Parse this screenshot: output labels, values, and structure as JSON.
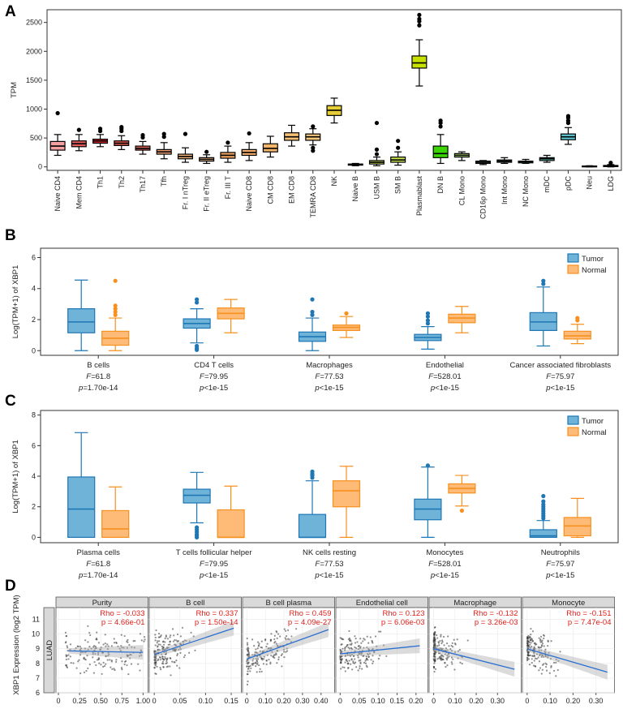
{
  "panels": {
    "A": "A",
    "B": "B",
    "C": "C",
    "D": "D"
  },
  "chart_data": [
    {
      "panel": "A",
      "type": "box",
      "ylabel": "TPM",
      "ylim": [
        -60,
        2720
      ],
      "yticks": [
        0,
        500,
        1000,
        1500,
        2000,
        2500
      ],
      "categories": [
        {
          "name": "Naive CD4",
          "color": "#f4a0a0",
          "q1": 290,
          "med": 360,
          "q3": 440,
          "lo": 200,
          "hi": 560,
          "out": [
            930
          ]
        },
        {
          "name": "Mem CD4",
          "color": "#e75a5a",
          "q1": 350,
          "med": 400,
          "q3": 450,
          "lo": 280,
          "hi": 560,
          "out": [
            640
          ]
        },
        {
          "name": "Th1",
          "color": "#d9262c",
          "q1": 410,
          "med": 450,
          "q3": 480,
          "lo": 350,
          "hi": 560,
          "out": [
            620,
            660
          ]
        },
        {
          "name": "Th2",
          "color": "#e25a50",
          "q1": 370,
          "med": 410,
          "q3": 450,
          "lo": 300,
          "hi": 540,
          "out": [
            620,
            660,
            690
          ]
        },
        {
          "name": "Th17",
          "color": "#e4685c",
          "q1": 290,
          "med": 320,
          "q3": 360,
          "lo": 220,
          "hi": 440,
          "out": [
            510,
            550
          ]
        },
        {
          "name": "Tfh",
          "color": "#f0a070",
          "q1": 220,
          "med": 260,
          "q3": 300,
          "lo": 140,
          "hi": 420,
          "out": [
            520,
            570
          ]
        },
        {
          "name": "Fr. I nTreg",
          "color": "#f6b87e",
          "q1": 140,
          "med": 180,
          "q3": 220,
          "lo": 80,
          "hi": 330,
          "out": [
            570
          ]
        },
        {
          "name": "Fr. II eTreg",
          "color": "#f7c68e",
          "q1": 100,
          "med": 130,
          "q3": 160,
          "lo": 60,
          "hi": 210,
          "out": [
            260
          ]
        },
        {
          "name": "Fr. III T",
          "color": "#f3a561",
          "q1": 150,
          "med": 200,
          "q3": 250,
          "lo": 80,
          "hi": 360,
          "out": [
            420
          ]
        },
        {
          "name": "Naive CD8",
          "color": "#f4b06c",
          "q1": 200,
          "med": 250,
          "q3": 300,
          "lo": 110,
          "hi": 420,
          "out": [
            580
          ]
        },
        {
          "name": "CM CD8",
          "color": "#f5b56b",
          "q1": 260,
          "med": 320,
          "q3": 400,
          "lo": 170,
          "hi": 530,
          "out": []
        },
        {
          "name": "EM CD8",
          "color": "#f8c074",
          "q1": 460,
          "med": 520,
          "q3": 590,
          "lo": 360,
          "hi": 720,
          "out": []
        },
        {
          "name": "TEMRA CD8",
          "color": "#f5c77a",
          "q1": 460,
          "med": 520,
          "q3": 570,
          "lo": 380,
          "hi": 660,
          "out": [
            280,
            330,
            700
          ]
        },
        {
          "name": "NK",
          "color": "#e6cf36",
          "q1": 890,
          "med": 980,
          "q3": 1060,
          "lo": 760,
          "hi": 1190,
          "out": []
        },
        {
          "name": "Naive B",
          "color": "#dde86b",
          "q1": 30,
          "med": 40,
          "q3": 50,
          "lo": 20,
          "hi": 60,
          "out": []
        },
        {
          "name": "USM B",
          "color": "#cfe256",
          "q1": 50,
          "med": 80,
          "q3": 110,
          "lo": 20,
          "hi": 170,
          "out": [
            220,
            300,
            760
          ]
        },
        {
          "name": "SM B",
          "color": "#c4df4c",
          "q1": 80,
          "med": 120,
          "q3": 170,
          "lo": 30,
          "hi": 260,
          "out": [
            330,
            450
          ]
        },
        {
          "name": "Plasmablast",
          "color": "#c8e000",
          "q1": 1710,
          "med": 1800,
          "q3": 1920,
          "lo": 1400,
          "hi": 2200,
          "out": [
            2450,
            2520,
            2560,
            2630
          ]
        },
        {
          "name": "DN B",
          "color": "#3ad400",
          "q1": 160,
          "med": 230,
          "q3": 360,
          "lo": 60,
          "hi": 560,
          "out": [
            700,
            760,
            800
          ]
        },
        {
          "name": "CL Mono",
          "color": "#b8e87e",
          "q1": 170,
          "med": 200,
          "q3": 230,
          "lo": 110,
          "hi": 260,
          "out": []
        },
        {
          "name": "CD16p Mono",
          "color": "#88d0a0",
          "q1": 60,
          "med": 80,
          "q3": 100,
          "lo": 40,
          "hi": 110,
          "out": []
        },
        {
          "name": "Int Mono",
          "color": "#88d0b0",
          "q1": 80,
          "med": 100,
          "q3": 120,
          "lo": 60,
          "hi": 160,
          "out": []
        },
        {
          "name": "NC Mono",
          "color": "#6cc7a8",
          "q1": 70,
          "med": 90,
          "q3": 100,
          "lo": 60,
          "hi": 130,
          "out": []
        },
        {
          "name": "mDC",
          "color": "#5cc4b8",
          "q1": 110,
          "med": 140,
          "q3": 160,
          "lo": 80,
          "hi": 200,
          "out": []
        },
        {
          "name": "pDC",
          "color": "#5fc8d4",
          "q1": 470,
          "med": 520,
          "q3": 570,
          "lo": 390,
          "hi": 680,
          "out": [
            760,
            800,
            850,
            880
          ]
        },
        {
          "name": "Neu",
          "color": "#6c9ed8",
          "q1": 0,
          "med": 10,
          "q3": 15,
          "lo": 0,
          "hi": 20,
          "out": []
        },
        {
          "name": "LDG",
          "color": "#7d8fe0",
          "q1": 5,
          "med": 15,
          "q3": 25,
          "lo": 0,
          "hi": 40,
          "out": [
            70
          ]
        }
      ]
    },
    {
      "panel": "B",
      "type": "grouped-box",
      "ylabel": "Log(TPM+1) of XBP1",
      "ylim": [
        -0.3,
        6.6
      ],
      "yticks": [
        0,
        2,
        4,
        6
      ],
      "legend": [
        {
          "name": "Tumor",
          "fill": "#6fb3d9",
          "stroke": "#1f77b4"
        },
        {
          "name": "Normal",
          "fill": "#fdbb77",
          "stroke": "#f7901e"
        }
      ],
      "groups": [
        {
          "name": "B cells",
          "f": "61.8",
          "p": "=1.70e-14",
          "tumor": {
            "q1": 1.15,
            "med": 1.85,
            "q3": 2.7,
            "lo": 0.0,
            "hi": 4.55,
            "out": []
          },
          "normal": {
            "q1": 0.35,
            "med": 0.8,
            "q3": 1.25,
            "lo": 0.0,
            "hi": 2.1,
            "out": [
              2.3,
              2.5,
              2.7,
              2.9,
              4.5
            ]
          }
        },
        {
          "name": "CD4 T cells",
          "f": "79.95",
          "p": "<1e-15",
          "tumor": {
            "q1": 1.45,
            "med": 1.75,
            "q3": 2.05,
            "lo": 0.5,
            "hi": 2.7,
            "out": [
              0.05,
              0.15,
              0.3,
              3.1,
              3.3
            ]
          },
          "normal": {
            "q1": 2.05,
            "med": 2.4,
            "q3": 2.75,
            "lo": 1.15,
            "hi": 3.3,
            "out": []
          }
        },
        {
          "name": "Macrophages",
          "f": "77.53",
          "p": "<1e-15",
          "tumor": {
            "q1": 0.6,
            "med": 0.9,
            "q3": 1.2,
            "lo": 0.0,
            "hi": 2.1,
            "out": [
              2.3,
              2.5,
              3.3
            ]
          },
          "normal": {
            "q1": 1.3,
            "med": 1.5,
            "q3": 1.65,
            "lo": 0.85,
            "hi": 2.2,
            "out": [
              2.4
            ]
          }
        },
        {
          "name": "Endothelial",
          "f": "528.01",
          "p": "<1e-15",
          "tumor": {
            "q1": 0.65,
            "med": 0.85,
            "q3": 1.05,
            "lo": 0.1,
            "hi": 1.55,
            "out": [
              1.75,
              1.95,
              2.2,
              2.4
            ]
          },
          "normal": {
            "q1": 1.8,
            "med": 2.1,
            "q3": 2.35,
            "lo": 1.15,
            "hi": 2.85,
            "out": []
          }
        },
        {
          "name": "Cancer associated fibroblasts",
          "f": "75.97",
          "p": "<1e-15",
          "tumor": {
            "q1": 1.3,
            "med": 1.85,
            "q3": 2.45,
            "lo": 0.3,
            "hi": 4.1,
            "out": [
              4.3,
              4.5
            ]
          },
          "normal": {
            "q1": 0.75,
            "med": 0.95,
            "q3": 1.25,
            "lo": 0.45,
            "hi": 1.7,
            "out": [
              1.95,
              2.1
            ]
          }
        }
      ]
    },
    {
      "panel": "C",
      "type": "grouped-box",
      "ylabel": "Log(TPM+1) of XBP1",
      "ylim": [
        -0.35,
        8.3
      ],
      "yticks": [
        0,
        2,
        4,
        6,
        8
      ],
      "legend": [
        {
          "name": "Tumor",
          "fill": "#6fb3d9",
          "stroke": "#1f77b4"
        },
        {
          "name": "Normal",
          "fill": "#fdbb77",
          "stroke": "#f7901e"
        }
      ],
      "groups": [
        {
          "name": "Plasma cells",
          "f": "61.8",
          "p": "=1.70e-14",
          "tumor": {
            "q1": 0.0,
            "med": 1.85,
            "q3": 3.95,
            "lo": 0.0,
            "hi": 6.85,
            "out": []
          },
          "normal": {
            "q1": 0.0,
            "med": 0.55,
            "q3": 1.75,
            "lo": 0.0,
            "hi": 3.3,
            "out": []
          }
        },
        {
          "name": "T cells follicular helper",
          "f": "79.95",
          "p": "<1e-15",
          "tumor": {
            "q1": 2.25,
            "med": 2.75,
            "q3": 3.15,
            "lo": 0.95,
            "hi": 4.25,
            "out": [
              0.0,
              0.1,
              0.2,
              0.35,
              0.5,
              0.65
            ]
          },
          "normal": {
            "q1": 0.0,
            "med": 0.0,
            "q3": 1.8,
            "lo": 0.0,
            "hi": 3.35,
            "out": []
          }
        },
        {
          "name": "NK cells resting",
          "f": "77.53",
          "p": "<1e-15",
          "tumor": {
            "q1": 0.0,
            "med": 0.0,
            "q3": 1.5,
            "lo": 0.0,
            "hi": 3.7,
            "out": [
              3.9,
              4.05,
              4.15,
              4.3
            ]
          },
          "normal": {
            "q1": 2.0,
            "med": 3.05,
            "q3": 3.7,
            "lo": 0.0,
            "hi": 4.65,
            "out": []
          }
        },
        {
          "name": "Monocytes",
          "f": "528.01",
          "p": "<1e-15",
          "tumor": {
            "q1": 1.15,
            "med": 1.85,
            "q3": 2.5,
            "lo": 0.0,
            "hi": 4.6,
            "out": [
              4.7
            ]
          },
          "normal": {
            "q1": 2.9,
            "med": 3.2,
            "q3": 3.5,
            "lo": 2.05,
            "hi": 4.05,
            "out": [
              1.75
            ]
          }
        },
        {
          "name": "Neutrophils",
          "f": "75.97",
          "p": "<1e-15",
          "tumor": {
            "q1": 0.0,
            "med": 0.1,
            "q3": 0.5,
            "lo": 0.0,
            "hi": 1.1,
            "out": [
              1.25,
              1.4,
              1.55,
              1.7,
              1.85,
              2.0,
              2.15,
              2.35,
              2.7
            ]
          },
          "normal": {
            "q1": 0.1,
            "med": 0.75,
            "q3": 1.3,
            "lo": 0.0,
            "hi": 2.55,
            "out": []
          }
        }
      ]
    },
    {
      "panel": "D",
      "type": "scatter-facets",
      "ylabel": "XBP1 Expression (log2 TPM)",
      "row_label": "LUAD",
      "ylim": [
        6,
        11.8
      ],
      "yticks": [
        6,
        7,
        8,
        9,
        10,
        11
      ],
      "facets": [
        {
          "title": "Purity",
          "rho": "Rho = -0.033",
          "p": "p = 4.66e-01",
          "xlim": [
            0.0,
            1.03
          ],
          "xticks": [
            0,
            0.25,
            0.5,
            0.75,
            1.0
          ],
          "xtick_labels": [
            "0",
            "0.25",
            "0.50",
            "0.75",
            "1.00"
          ],
          "line": [
            [
              0.12,
              8.85
            ],
            [
              1.0,
              8.75
            ]
          ],
          "x_center": 0.55,
          "x_spread": 0.28,
          "x_min": 0.08
        },
        {
          "title": "B cell",
          "rho": "Rho = 0.337",
          "p": "p = 1.50e-14",
          "xlim": [
            -0.005,
            0.165
          ],
          "xticks": [
            0,
            0.05,
            0.1,
            0.15
          ],
          "xtick_labels": [
            "0",
            "0.05",
            "0.10",
            "0.15"
          ],
          "line": [
            [
              0.0,
              8.6
            ],
            [
              0.155,
              10.4
            ]
          ],
          "x_center": 0.02,
          "x_spread": 0.025,
          "x_min": 0.0
        },
        {
          "title": "B cell plasma",
          "rho": "Rho = 0.459",
          "p": "p = 4.09e-27",
          "xlim": [
            -0.01,
            0.46
          ],
          "xticks": [
            0,
            0.1,
            0.2,
            0.3,
            0.4
          ],
          "xtick_labels": [
            "0",
            "0.10",
            "0.20",
            "0.30",
            "0.40"
          ],
          "line": [
            [
              0.0,
              8.3
            ],
            [
              0.44,
              10.3
            ]
          ],
          "x_center": 0.09,
          "x_spread": 0.08,
          "x_min": 0.0
        },
        {
          "title": "Endothelial cell",
          "rho": "Rho = 0.123",
          "p": "p = 6.06e-03",
          "xlim": [
            -0.005,
            0.225
          ],
          "xticks": [
            0,
            0.05,
            0.1,
            0.15,
            0.2
          ],
          "xtick_labels": [
            "0",
            "0.05",
            "0.10",
            "0.15",
            "0.20"
          ],
          "line": [
            [
              0.0,
              8.65
            ],
            [
              0.21,
              9.2
            ]
          ],
          "x_center": 0.04,
          "x_spread": 0.035,
          "x_min": 0.0
        },
        {
          "title": "Macrophage",
          "rho": "Rho = -0.132",
          "p": "p = 3.26e-03",
          "xlim": [
            -0.01,
            0.4
          ],
          "xticks": [
            0,
            0.1,
            0.2,
            0.3
          ],
          "xtick_labels": [
            "0",
            "0.10",
            "0.20",
            "0.30"
          ],
          "line": [
            [
              0.0,
              9.0
            ],
            [
              0.38,
              7.6
            ]
          ],
          "x_center": 0.02,
          "x_spread": 0.05,
          "x_min": 0.0
        },
        {
          "title": "Monocyte",
          "rho": "Rho = -0.151",
          "p": "p = 7.47e-04",
          "xlim": [
            -0.01,
            0.37
          ],
          "xticks": [
            0,
            0.1,
            0.2,
            0.3
          ],
          "xtick_labels": [
            "0",
            "0.10",
            "0.20",
            "0.30"
          ],
          "line": [
            [
              0.0,
              9.0
            ],
            [
              0.35,
              7.4
            ]
          ],
          "x_center": 0.03,
          "x_spread": 0.05,
          "x_min": 0.0
        }
      ]
    }
  ]
}
